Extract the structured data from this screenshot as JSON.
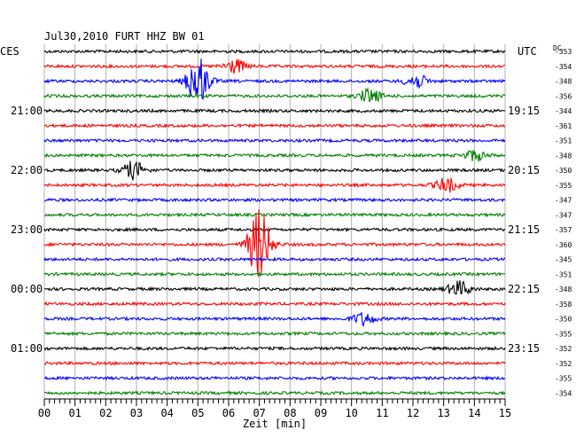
{
  "header": {
    "title": "Jul30,2010   FURT HHZ BW 01",
    "left_label": "CES",
    "right_label": "UTC",
    "dc_label": "DC"
  },
  "chart_data": {
    "type": "line",
    "title": "Jul30,2010   FURT HHZ BW 01",
    "xlabel": "Zeit [min]",
    "xlim": [
      0,
      15
    ],
    "x_ticks": [
      "00",
      "01",
      "02",
      "03",
      "04",
      "05",
      "06",
      "07",
      "08",
      "09",
      "10",
      "11",
      "12",
      "13",
      "14",
      "15"
    ],
    "trace_colors": [
      "#000000",
      "#ff0000",
      "#0000ff",
      "#008000"
    ],
    "left_time_labels": [
      {
        "row": 4,
        "text": "21:00"
      },
      {
        "row": 8,
        "text": "22:00"
      },
      {
        "row": 12,
        "text": "23:00"
      },
      {
        "row": 16,
        "text": "00:00"
      },
      {
        "row": 20,
        "text": "01:00"
      }
    ],
    "right_time_labels": [
      {
        "row": 4,
        "text": "19:15"
      },
      {
        "row": 8,
        "text": "20:15"
      },
      {
        "row": 12,
        "text": "21:15"
      },
      {
        "row": 16,
        "text": "22:15"
      },
      {
        "row": 20,
        "text": "23:15"
      }
    ],
    "dc_offsets": [
      -353,
      -354,
      -348,
      -356,
      -344,
      -361,
      -351,
      -348,
      -350,
      -355,
      -347,
      -347,
      -357,
      -360,
      -345,
      -351,
      -348,
      -358,
      -350,
      -355,
      -352,
      -352,
      -355,
      -354
    ],
    "events": [
      {
        "row": 2,
        "minute": 5.0,
        "amplitude": 0.7
      },
      {
        "row": 13,
        "minute": 7.0,
        "amplitude": 1.0
      },
      {
        "row": 1,
        "minute": 6.2,
        "amplitude": 0.2
      },
      {
        "row": 3,
        "minute": 10.6,
        "amplitude": 0.2
      },
      {
        "row": 8,
        "minute": 2.9,
        "amplitude": 0.25
      },
      {
        "row": 9,
        "minute": 13.1,
        "amplitude": 0.2
      },
      {
        "row": 16,
        "minute": 13.5,
        "amplitude": 0.22
      },
      {
        "row": 18,
        "minute": 10.4,
        "amplitude": 0.18
      },
      {
        "row": 2,
        "minute": 12.1,
        "amplitude": 0.2
      },
      {
        "row": 7,
        "minute": 14.0,
        "amplitude": 0.15
      }
    ]
  }
}
